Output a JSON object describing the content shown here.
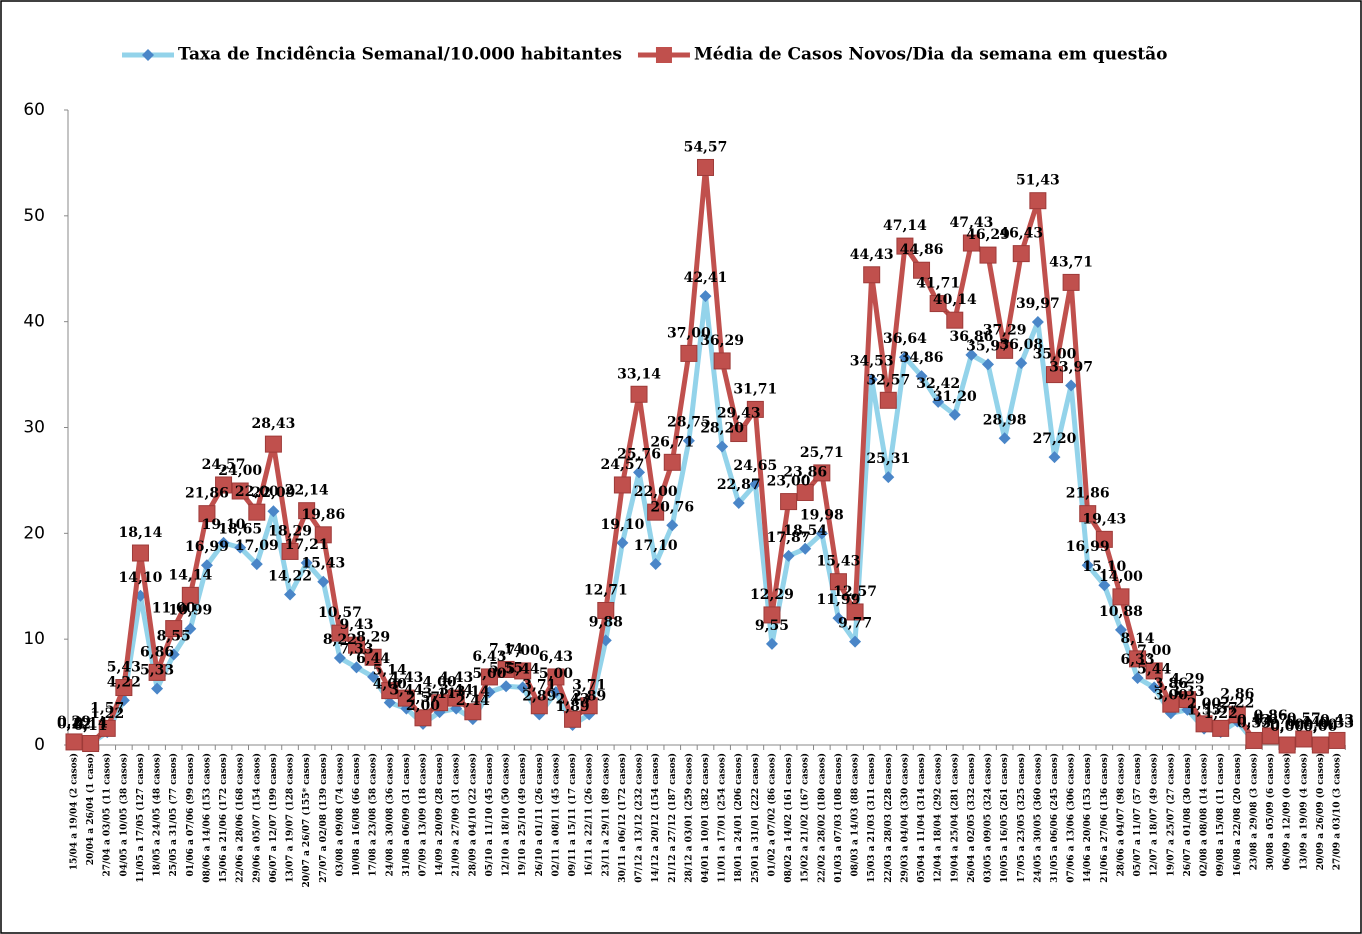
{
  "chart_data": {
    "type": "line",
    "categories": [
      "15/04 a 19/04 (2 casos)",
      "20/04 a 26/04 (1 caso)",
      "27/04 a 03/05 (11 casos)",
      "04/05 a 10/05 (38 casos)",
      "11/05 a 17/05 (127 casos)",
      "18/05 a 24/05 (48 casos)",
      "25/05 a 31/05 (77 casos)",
      "01/06 a 07/06 (99 casos)",
      "08/06 a 14/06 (153 casos)",
      "15/06 a 21/06 (172 casos)",
      "22/06 a 28/06 (168 casos)",
      "29/06 a 05/07 (154 casos)",
      "06/07 a 12/07 (199 casos)",
      "13/07 a 19/07 (128 casos)",
      "20/07 a 26/07 (155* casos)",
      "27/07 a 02/08 (139 casos)",
      "03/08 a 09/08 (74 casos)",
      "10/08 a 16/08 (66 casos)",
      "17/08 a 23/08 (58 casos)",
      "24/08 a 30/08 (36 casos)",
      "31/08 a 06/09 (31 casos)",
      "07/09 a 13/09 (18 casos)",
      "14/09 a 20/09 (28 casos)",
      "21/09 a 27/09 (31 casos)",
      "28/09 a 04/10 (22 casos)",
      "05/10 a 11/10 (45 casos)",
      "12/10 a 18/10 (50 casos)",
      "19/10 a 25/10 (49 casos)",
      "26/10 a 01/11 (26 casos)",
      "02/11 a 08/11 (45 casos)",
      "09/11 a 15/11 (17 casos)",
      "16/11 a 22/11 (26 casos)",
      "23/11 a 29/11 (89 casos)",
      "30/11 a 06/12 (172 casos)",
      "07/12 a 13/12 (232 casos)",
      "14/12 a 20/12 (154 casos)",
      "21/12 a 27/12 (187 casos)",
      "28/12 a 03/01 (259 casos)",
      "04/01 a 10/01 (382 casos)",
      "11/01 a 17/01 (254 casos)",
      "18/01 a 24/01 (206 casos)",
      "25/01 a 31/01 (222 casos)",
      "01/02 a 07/02 (86 casos)",
      "08/02 a 14/02 (161 casos)",
      "15/02 a 21/02 (167 casos)",
      "22/02 a 28/02 (180 casos)",
      "01/03 a 07/03 (108 casos)",
      "08/03 a 14/03 (88 casos)",
      "15/03 a 21/03 (311 casos)",
      "22/03 a 28/03 (228 casos)",
      "29/03 a 04/04 (330 casos)",
      "05/04 a 11/04 (314 casos)",
      "12/04 a 18/04 (292 casos)",
      "19/04 a 25/04 (281 casos)",
      "26/04 a 02/05 (332 casos)",
      "03/05 a 09/05 (324 casos)",
      "10/05 a 16/05 (261 casos)",
      "17/05 a 23/05 (325 casos)",
      "24/05 a 30/05 (360 casos)",
      "31/05 a 06/06 (245 casos)",
      "07/06 a 13/06 (306 casos)",
      "14/06 a 20/06 (153 casos)",
      "21/06 a 27/06 (136 casos)",
      "28/06 a 04/07 (98 casos)",
      "05/07 a 11/07 (57 casos)",
      "12/07 a 18/07 (49 casos)",
      "19/07 a 25/07 (27 casos)",
      "26/07 a 01/08 (30 casos)",
      "02/08 a 08/08 (14 casos)",
      "09/08 a 15/08 (11 casos)",
      "16/08 a 22/08 (20 casos)",
      "23/08 a 29/08 (3 casos)",
      "30/08 a 05/09 (6 casos)",
      "06/09 a 12/09 (0 casos)",
      "13/09 a 19/09 (4 casos)",
      "20/09 a 26/09 (0 casos)",
      "27/09 a 03/10 (3 casos)"
    ],
    "series": [
      {
        "name": "Taxa de Incidência Semanal/10.000 habitantes",
        "color": "#93d3ea",
        "marker_color": "#4a86c8",
        "marker": "diamond",
        "values": [
          0.22,
          0.11,
          1.22,
          4.22,
          14.1,
          5.33,
          8.55,
          10.99,
          16.99,
          19.1,
          18.65,
          17.09,
          22.09,
          14.22,
          17.21,
          15.43,
          8.22,
          7.33,
          6.44,
          4.0,
          3.44,
          2.0,
          3.11,
          3.44,
          2.44,
          5.0,
          5.55,
          5.44,
          2.89,
          5.0,
          1.89,
          2.89,
          9.88,
          19.1,
          25.76,
          17.1,
          20.76,
          28.75,
          42.41,
          28.2,
          22.87,
          24.65,
          9.55,
          17.87,
          18.54,
          19.98,
          11.99,
          9.77,
          34.53,
          25.31,
          36.64,
          34.86,
          32.42,
          31.2,
          36.86,
          35.97,
          28.98,
          36.08,
          39.97,
          27.2,
          33.97,
          16.99,
          15.1,
          10.88,
          6.33,
          5.44,
          3.0,
          3.33,
          1.55,
          1.22,
          2.22,
          0.33,
          0.67,
          0.0,
          0.44,
          0.0,
          0.33
        ],
        "value_labels": [
          "0,22",
          "0,11",
          "1,22",
          "4,22",
          "14,10",
          "5,33",
          "8,55",
          "10,99",
          "16,99",
          "19,10",
          "18,65",
          "17,09",
          "22,09",
          "14,22",
          "17,21",
          "15,43",
          "8,22",
          "7,33",
          "6,44",
          "4,00",
          "3,44",
          "2,00",
          "3,11",
          "3,44",
          "2,44",
          "5,00",
          "5,55",
          "5,44",
          "2,89",
          "5,00",
          "1,89",
          "2,89",
          "9,88",
          "19,10",
          "25,76",
          "17,10",
          "20,76",
          "28,75",
          "42,41",
          "28,20",
          "22,87",
          "24,65",
          "9,55",
          "17,87",
          "18,54",
          "19,98",
          "11,99",
          "9,77",
          "34,53",
          "25,31",
          "36,64",
          "34,86",
          "32,42",
          "31,20",
          "36,86",
          "35,97",
          "28,98",
          "36,08",
          "39,97",
          "27,20",
          "33,97",
          "16,99",
          "15,10",
          "10,88",
          "6,33",
          "5,44",
          "3,00",
          "3,33",
          "1,55",
          "1,22",
          "2,22",
          "0,33",
          "0,67",
          "0,00",
          "0,44",
          "0,00",
          "0,33"
        ]
      },
      {
        "name": "Média de Casos Novos/Dia da semana em questão",
        "color": "#c0504d",
        "marker_color": "#c0504d",
        "marker": "square",
        "values": [
          0.29,
          0.14,
          1.57,
          5.43,
          18.14,
          6.86,
          11.0,
          14.14,
          21.86,
          24.57,
          24.0,
          22.0,
          28.43,
          18.29,
          22.14,
          19.86,
          10.57,
          9.43,
          8.29,
          5.14,
          4.43,
          2.57,
          4.0,
          4.43,
          3.14,
          6.43,
          7.14,
          7.0,
          3.71,
          6.43,
          2.43,
          3.71,
          12.71,
          24.57,
          33.14,
          22.0,
          26.71,
          37.0,
          54.57,
          36.29,
          29.43,
          31.71,
          12.29,
          23.0,
          23.86,
          25.71,
          15.43,
          12.57,
          44.43,
          32.57,
          47.14,
          44.86,
          41.71,
          40.14,
          47.43,
          46.29,
          37.29,
          46.43,
          51.43,
          35.0,
          43.71,
          21.86,
          19.43,
          14.0,
          8.14,
          7.0,
          3.86,
          4.29,
          2.0,
          1.57,
          2.86,
          0.43,
          0.86,
          0.0,
          0.57,
          0.0,
          0.43
        ],
        "value_labels": [
          "0,29",
          "0,14",
          "1,57",
          "5,43",
          "18,14",
          "6,86",
          "11,00",
          "14,14",
          "21,86",
          "24,57",
          "24,00",
          "22,00",
          "28,43",
          "18,29",
          "22,14",
          "19,86",
          "10,57",
          "9,43",
          "8,29",
          "5,14",
          "4,43",
          "2,57",
          "4,00",
          "4,43",
          "3,14",
          "6,43",
          "7,14",
          "7,00",
          "3,71",
          "6,43",
          "2,43",
          "3,71",
          "12,71",
          "24,57",
          "33,14",
          "22,00",
          "26,71",
          "37,00",
          "54,57",
          "36,29",
          "29,43",
          "31,71",
          "12,29",
          "23,00",
          "23,86",
          "25,71",
          "15,43",
          "12,57",
          "44,43",
          "32,57",
          "47,14",
          "44,86",
          "41,71",
          "40,14",
          "47,43",
          "46,29",
          "37,29",
          "46,43",
          "51,43",
          "35,00",
          "43,71",
          "21,86",
          "19,43",
          "14,00",
          "8,14",
          "7,00",
          "3,86",
          "4,29",
          "2,00",
          "1,57",
          "2,86",
          "0,43",
          "0,86",
          "0,00",
          "0,57",
          "0,00",
          "0,43"
        ]
      }
    ],
    "ylim": [
      0,
      60
    ],
    "yticks": [
      0,
      10,
      20,
      30,
      40,
      50,
      60
    ],
    "grid": false,
    "legend": "top"
  }
}
